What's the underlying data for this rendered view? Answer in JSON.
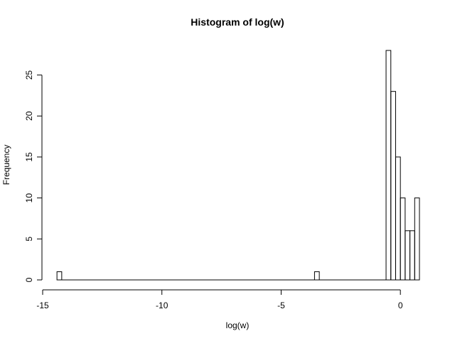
{
  "chart_data": {
    "type": "bar",
    "title": "Histogram of log(w)",
    "xlabel": "log(w)",
    "ylabel": "Frequency",
    "xlim": [
      -15,
      0.8
    ],
    "ylim": [
      0,
      28
    ],
    "x_ticks": [
      -15,
      -10,
      -5,
      0
    ],
    "y_ticks": [
      0,
      5,
      10,
      15,
      20,
      25
    ],
    "bin_width": 0.2,
    "bins": [
      {
        "start": -14.4,
        "end": -14.2,
        "count": 1
      },
      {
        "start": -3.6,
        "end": -3.4,
        "count": 1
      },
      {
        "start": -0.6,
        "end": -0.4,
        "count": 28
      },
      {
        "start": -0.4,
        "end": -0.2,
        "count": 23
      },
      {
        "start": -0.2,
        "end": 0.0,
        "count": 15
      },
      {
        "start": 0.0,
        "end": 0.2,
        "count": 10
      },
      {
        "start": 0.2,
        "end": 0.4,
        "count": 6
      },
      {
        "start": 0.4,
        "end": 0.6,
        "count": 6
      },
      {
        "start": 0.6,
        "end": 0.8,
        "count": 10
      }
    ],
    "grid": false,
    "legend": "none"
  }
}
